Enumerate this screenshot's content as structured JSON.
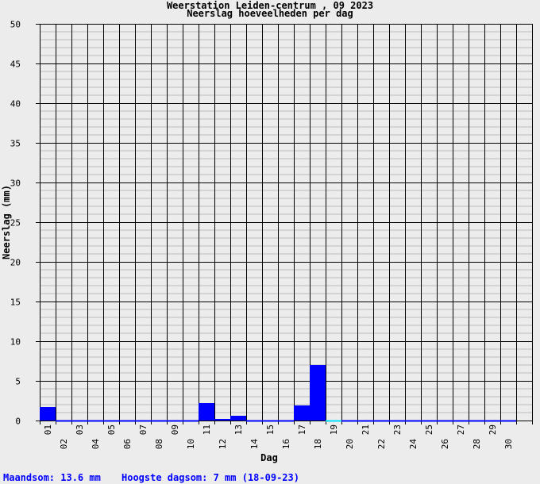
{
  "chart_data": {
    "type": "bar",
    "title": "Weerstation Leiden-centrum , 09 2023",
    "subtitle": "Neerslag hoeveelheden per dag",
    "xlabel": "Dag",
    "ylabel": "Neerslag (mm)",
    "ylim": [
      0,
      50
    ],
    "yticks": [
      0,
      5,
      10,
      15,
      20,
      25,
      30,
      35,
      40,
      45,
      50
    ],
    "grid": true,
    "categories": [
      "01",
      "02",
      "03",
      "04",
      "05",
      "06",
      "07",
      "08",
      "09",
      "10",
      "11",
      "12",
      "13",
      "14",
      "15",
      "16",
      "17",
      "18",
      "19",
      "20",
      "21",
      "22",
      "23",
      "24",
      "25",
      "26",
      "27",
      "28",
      "29",
      "30"
    ],
    "values": [
      1.7,
      0,
      0,
      0,
      0,
      0,
      0,
      0,
      0,
      0,
      2.2,
      0.2,
      0.6,
      0,
      0,
      0,
      1.9,
      7.0,
      0,
      0,
      0,
      0,
      0,
      0,
      0,
      0,
      0,
      0,
      0,
      0
    ],
    "bar_color": "#0000ff",
    "current_day_marker": "19",
    "current_day_color": "#00e0ff"
  },
  "footer": {
    "month_total": "Maandsom: 13.6 mm",
    "max_day": "Hoogste dagsom: 7 mm (18-09-23)",
    "color": "#0000ff"
  }
}
